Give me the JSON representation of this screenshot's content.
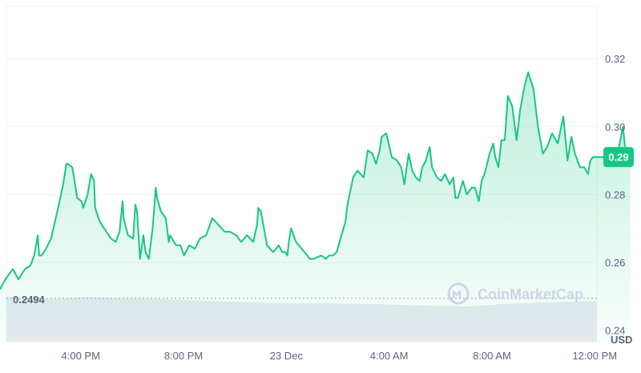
{
  "chart_data": {
    "type": "area",
    "title": "",
    "xlabel": "",
    "ylabel": "",
    "unit_label": "USD",
    "x_tick_labels": [
      "4:00 PM",
      "8:00 PM",
      "23 Dec",
      "4:00 AM",
      "8:00 AM",
      "12:00 PM"
    ],
    "x_tick_hours": [
      16,
      20,
      24,
      28,
      32,
      36
    ],
    "y_tick_labels": [
      "0.24",
      "0.26",
      "0.28",
      "0.30",
      "0.32"
    ],
    "y_ticks": [
      0.24,
      0.26,
      0.28,
      0.3,
      0.32
    ],
    "ylim": [
      0.2366,
      0.3354
    ],
    "xlim_hours": [
      12.86,
      37.8
    ],
    "grid": true,
    "legend": "none",
    "open_price": 0.2494,
    "open_price_label": "0.2494",
    "current_price_label": "0.29",
    "line_color": "#16c784",
    "fill_color": "#16c784",
    "badge_color": "#16c784",
    "series": [
      {
        "x_hours": [
          12.86,
          13.07,
          13.36,
          13.58,
          13.83,
          14.04,
          14.19,
          14.33,
          14.38,
          14.48,
          14.65,
          14.85,
          15.12,
          15.32,
          15.44,
          15.5,
          15.67,
          15.74,
          15.86,
          16.03,
          16.1,
          16.27,
          16.4,
          16.52,
          16.56,
          16.74,
          16.91,
          17.0,
          17.18,
          17.36,
          17.51,
          17.63,
          17.67,
          17.84,
          18.04,
          18.13,
          18.19,
          18.31,
          18.44,
          18.52,
          18.65,
          18.8,
          18.92,
          18.97,
          19.12,
          19.31,
          19.43,
          19.48,
          19.71,
          19.88,
          20.02,
          20.22,
          20.44,
          20.64,
          20.88,
          21.12,
          21.36,
          21.6,
          21.81,
          22.05,
          22.25,
          22.47,
          22.71,
          22.86,
          22.91,
          23.01,
          23.25,
          23.49,
          23.71,
          23.84,
          23.96,
          24.04,
          24.1,
          24.18,
          24.38,
          24.6,
          24.82,
          24.91,
          25.06,
          25.36,
          25.54,
          25.66,
          25.81,
          25.96,
          26.15,
          26.3,
          26.38,
          26.6,
          26.77,
          27.01,
          27.17,
          27.35,
          27.49,
          27.63,
          27.71,
          27.89,
          28.1,
          28.31,
          28.47,
          28.59,
          28.76,
          28.9,
          29.04,
          29.19,
          29.29,
          29.43,
          29.58,
          29.67,
          29.86,
          30.03,
          30.17,
          30.36,
          30.5,
          30.58,
          30.68,
          30.87,
          31.02,
          31.22,
          31.34,
          31.49,
          31.6,
          31.71,
          31.91,
          32.05,
          32.13,
          32.25,
          32.37,
          32.5,
          32.62,
          32.79,
          32.96,
          33.1,
          33.27,
          33.41,
          33.62,
          33.79,
          33.98,
          34.15,
          34.34,
          34.56,
          34.78,
          34.94,
          35.09,
          35.23,
          35.42,
          35.59,
          35.74,
          35.83,
          35.93,
          36.13,
          36.33,
          36.55,
          36.72,
          36.89,
          37.1,
          37.23,
          37.35,
          37.38
        ],
        "y": [
          0.252,
          0.255,
          0.258,
          0.255,
          0.258,
          0.259,
          0.262,
          0.268,
          0.262,
          0.262,
          0.264,
          0.267,
          0.276,
          0.283,
          0.289,
          0.289,
          0.288,
          0.285,
          0.279,
          0.278,
          0.276,
          0.28,
          0.286,
          0.284,
          0.276,
          0.272,
          0.27,
          0.269,
          0.267,
          0.266,
          0.269,
          0.278,
          0.273,
          0.268,
          0.267,
          0.277,
          0.275,
          0.261,
          0.268,
          0.263,
          0.261,
          0.27,
          0.282,
          0.279,
          0.275,
          0.273,
          0.266,
          0.268,
          0.265,
          0.265,
          0.262,
          0.265,
          0.264,
          0.267,
          0.268,
          0.273,
          0.271,
          0.269,
          0.269,
          0.268,
          0.266,
          0.268,
          0.266,
          0.271,
          0.276,
          0.275,
          0.265,
          0.263,
          0.265,
          0.263,
          0.263,
          0.262,
          0.266,
          0.27,
          0.266,
          0.264,
          0.262,
          0.261,
          0.261,
          0.262,
          0.261,
          0.262,
          0.262,
          0.263,
          0.268,
          0.272,
          0.277,
          0.285,
          0.287,
          0.285,
          0.293,
          0.292,
          0.289,
          0.293,
          0.297,
          0.298,
          0.291,
          0.29,
          0.288,
          0.283,
          0.292,
          0.287,
          0.285,
          0.284,
          0.288,
          0.29,
          0.294,
          0.288,
          0.285,
          0.284,
          0.286,
          0.283,
          0.285,
          0.279,
          0.279,
          0.284,
          0.28,
          0.282,
          0.282,
          0.278,
          0.284,
          0.286,
          0.292,
          0.295,
          0.291,
          0.288,
          0.296,
          0.296,
          0.309,
          0.306,
          0.296,
          0.305,
          0.312,
          0.316,
          0.311,
          0.3,
          0.292,
          0.294,
          0.298,
          0.295,
          0.303,
          0.29,
          0.297,
          0.292,
          0.288,
          0.288,
          0.286,
          0.29,
          0.291,
          0.291,
          0.291,
          0.289,
          0.292,
          0.292,
          0.3,
          0.29,
          0.292,
          0.291
        ]
      }
    ],
    "volume_note": "volume bars shown as light gray band near bottom"
  },
  "watermark": {
    "text": "CoinMarketCap",
    "icon": "coinmarketcap-logo-icon"
  },
  "colors": {
    "grid": "#eff2f5",
    "axis_text": "#58667e",
    "volume": "#e8ebf0",
    "open_line": "#a6b0c3"
  }
}
